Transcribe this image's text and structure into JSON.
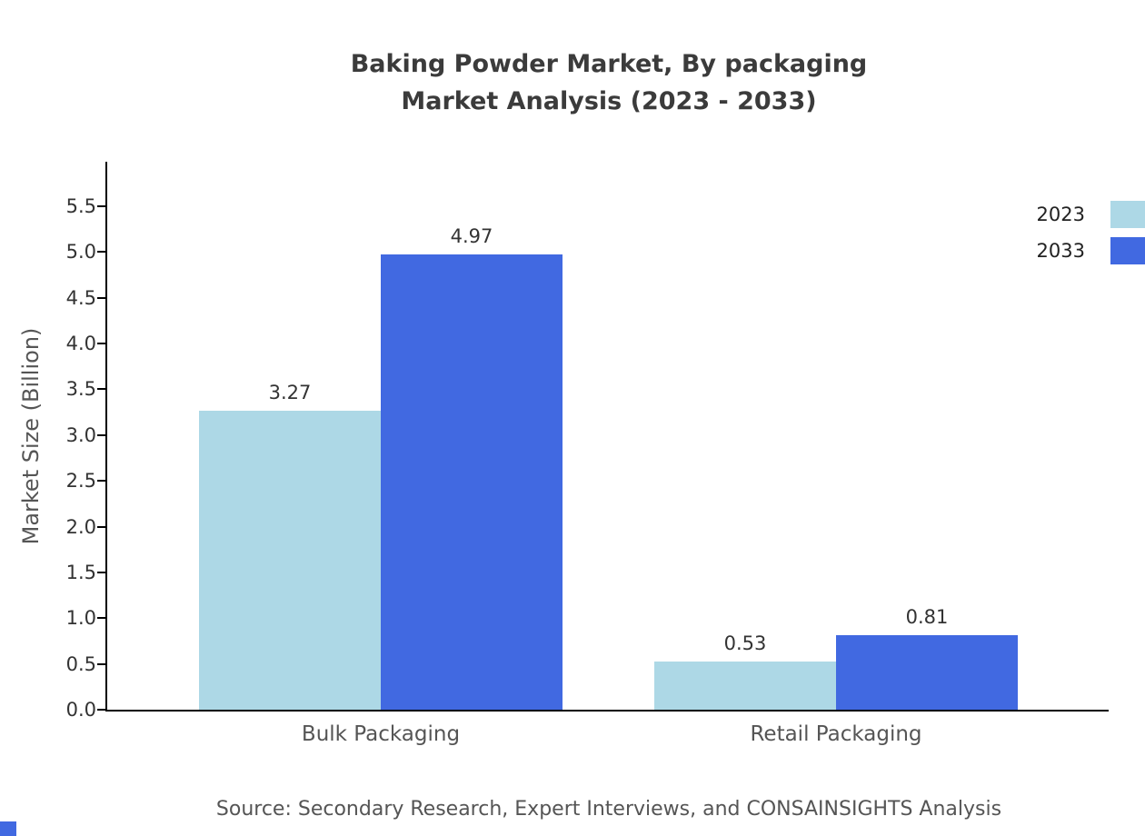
{
  "title": {
    "line1": "Baking Powder Market, By packaging",
    "line2": "Market Analysis (2023 - 2033)"
  },
  "source": "Source: Secondary Research, Expert Interviews, and CONSAINSIGHTS Analysis",
  "chart_data": {
    "type": "bar",
    "categories": [
      "Bulk Packaging",
      "Retail Packaging"
    ],
    "series": [
      {
        "name": "2023",
        "color": "#add8e6",
        "values": [
          3.27,
          0.53
        ]
      },
      {
        "name": "2033",
        "color": "#4169e1",
        "values": [
          4.97,
          0.81
        ]
      }
    ],
    "title": "Baking Powder Market, By packaging Market Analysis (2023 - 2033)",
    "xlabel": "",
    "ylabel": "Market Size (Billion)",
    "ylim": [
      0,
      5.5
    ],
    "ytick_step": 0.5,
    "yticks": [
      "0.0",
      "0.5",
      "1.0",
      "1.5",
      "2.0",
      "2.5",
      "3.0",
      "3.5",
      "4.0",
      "4.5",
      "5.0",
      "5.5"
    ],
    "value_labels": [
      "3.27",
      "4.97",
      "0.53",
      "0.81"
    ],
    "legend_position": "top-right",
    "grid": false
  },
  "colors": {
    "series_2023": "#add8e6",
    "series_2033": "#4169e1",
    "axis": "#000000",
    "title_text": "#3b3b3b",
    "muted_text": "#555555",
    "corner_mark": "#4169e1"
  }
}
